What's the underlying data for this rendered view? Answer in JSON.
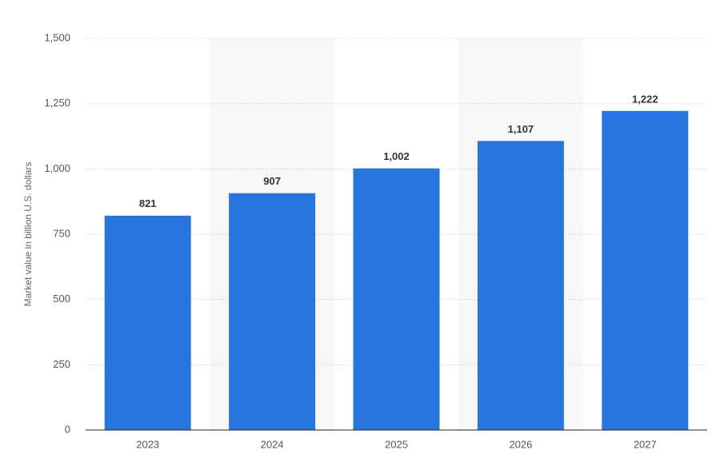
{
  "chart_data": {
    "type": "bar",
    "y_label": "Market value in billion U.S. dollars",
    "categories": [
      "2023",
      "2024",
      "2025",
      "2026",
      "2027"
    ],
    "values": [
      821,
      907,
      1002,
      1107,
      1222
    ],
    "value_labels": [
      "821",
      "907",
      "1,002",
      "1,107",
      "1,222"
    ],
    "color": "#2876dd",
    "ylim": [
      0,
      1500
    ],
    "yticks": [
      0,
      250,
      500,
      750,
      {
        "value": 1000,
        "label": "1,000"
      },
      {
        "value": 1250,
        "label": "1,250"
      },
      {
        "value": 1500,
        "label": "1,500"
      }
    ],
    "grid": true
  }
}
